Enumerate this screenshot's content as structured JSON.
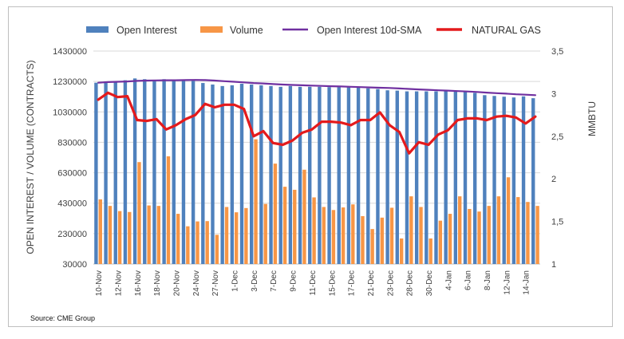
{
  "source": "Source: CME Group",
  "colors": {
    "open_interest": "#4f81bd",
    "volume": "#f79646",
    "sma": "#7030a0",
    "natural_gas": "#e41a1c",
    "grid": "#d9d9d9",
    "axis_text": "#404040"
  },
  "chart_data": {
    "type": "bar",
    "title": "",
    "ylabel": "OPEN INTEREST / VOLUME (CONTRACTS)",
    "y2label": "MMBTU",
    "ylim": [
      30000,
      1430000
    ],
    "yticks": [
      30000,
      230000,
      430000,
      630000,
      830000,
      1030000,
      1230000,
      1430000
    ],
    "ytick_labels": [
      "30000",
      "230000",
      "430000",
      "630000",
      "830000",
      "1030000",
      "1230000",
      "1430000"
    ],
    "y2lim": [
      1,
      3.5
    ],
    "y2ticks": [
      1,
      1.5,
      2,
      2.5,
      3,
      3.5
    ],
    "y2tick_labels": [
      "1",
      "1,5",
      "2",
      "2,5",
      "3",
      "3,5"
    ],
    "grid": true,
    "legend_position": "top",
    "x": [
      "10-Nov",
      "11-Nov",
      "12-Nov",
      "13-Nov",
      "16-Nov",
      "17-Nov",
      "18-Nov",
      "19-Nov",
      "20-Nov",
      "23-Nov",
      "24-Nov",
      "25-Nov",
      "27-Nov",
      "30-Nov",
      "1-Dec",
      "2-Dec",
      "3-Dec",
      "4-Dec",
      "7-Dec",
      "8-Dec",
      "9-Dec",
      "10-Dec",
      "11-Dec",
      "14-Dec",
      "15-Dec",
      "16-Dec",
      "17-Dec",
      "18-Dec",
      "21-Dec",
      "22-Dec",
      "23-Dec",
      "24-Dec",
      "28-Dec",
      "29-Dec",
      "30-Dec",
      "31-Dec",
      "4-Jan",
      "5-Jan",
      "6-Jan",
      "7-Jan",
      "8-Jan",
      "11-Jan",
      "12-Jan",
      "13-Jan",
      "14-Jan",
      "15-Jan"
    ],
    "xtick_labels": [
      "10-Nov",
      "12-Nov",
      "16-Nov",
      "18-Nov",
      "20-Nov",
      "24-Nov",
      "27-Nov",
      "1-Dec",
      "3-Dec",
      "7-Dec",
      "9-Dec",
      "11-Dec",
      "15-Dec",
      "17-Dec",
      "21-Dec",
      "23-Dec",
      "28-Dec",
      "30-Dec",
      "4-Jan",
      "6-Jan",
      "8-Jan",
      "12-Jan",
      "14-Jan"
    ],
    "series": [
      {
        "name": "Open Interest",
        "kind": "bar",
        "axis": "left",
        "values": [
          1222000,
          1230000,
          1233000,
          1238000,
          1250000,
          1245000,
          1240000,
          1245000,
          1243000,
          1240000,
          1235000,
          1220000,
          1210000,
          1200000,
          1205000,
          1215000,
          1210000,
          1205000,
          1200000,
          1195000,
          1200000,
          1195000,
          1195000,
          1195000,
          1193000,
          1193000,
          1193000,
          1190000,
          1185000,
          1180000,
          1172000,
          1170000,
          1165000,
          1165000,
          1165000,
          1165000,
          1170000,
          1165000,
          1160000,
          1155000,
          1140000,
          1135000,
          1130000,
          1125000,
          1132000,
          1120000
        ]
      },
      {
        "name": "Volume",
        "kind": "bar",
        "axis": "left",
        "values": [
          455000,
          412000,
          378000,
          372000,
          700000,
          415000,
          412000,
          738000,
          360000,
          278000,
          310000,
          312000,
          222000,
          405000,
          370000,
          398000,
          850000,
          425000,
          690000,
          538000,
          518000,
          650000,
          468000,
          405000,
          385000,
          402000,
          422000,
          345000,
          260000,
          335000,
          400000,
          198000,
          475000,
          405000,
          198000,
          315000,
          360000,
          475000,
          392000,
          375000,
          412000,
          475000,
          600000,
          470000,
          438000,
          412000
        ]
      },
      {
        "name": "Open Interest 10d-SMA",
        "kind": "line",
        "axis": "left",
        "values": [
          1222000,
          1226000,
          1228000,
          1230000,
          1234000,
          1236000,
          1237000,
          1238000,
          1238000,
          1239000,
          1240000,
          1239000,
          1236000,
          1232000,
          1228000,
          1224000,
          1220000,
          1217000,
          1213000,
          1210000,
          1207000,
          1205000,
          1203000,
          1201000,
          1199000,
          1197000,
          1195000,
          1193000,
          1191000,
          1189000,
          1187000,
          1184000,
          1181000,
          1178000,
          1175000,
          1172000,
          1170000,
          1167000,
          1164000,
          1161000,
          1157000,
          1153000,
          1150000,
          1146000,
          1143000,
          1140000
        ]
      },
      {
        "name": "NATURAL GAS",
        "kind": "line",
        "axis": "right",
        "values": [
          2.93,
          3.01,
          2.96,
          2.97,
          2.69,
          2.68,
          2.7,
          2.58,
          2.63,
          2.7,
          2.75,
          2.88,
          2.84,
          2.87,
          2.87,
          2.82,
          2.5,
          2.56,
          2.42,
          2.4,
          2.45,
          2.54,
          2.58,
          2.67,
          2.67,
          2.66,
          2.63,
          2.69,
          2.69,
          2.78,
          2.63,
          2.55,
          2.3,
          2.43,
          2.4,
          2.52,
          2.57,
          2.69,
          2.71,
          2.71,
          2.69,
          2.73,
          2.74,
          2.72,
          2.65,
          2.73
        ]
      }
    ]
  }
}
